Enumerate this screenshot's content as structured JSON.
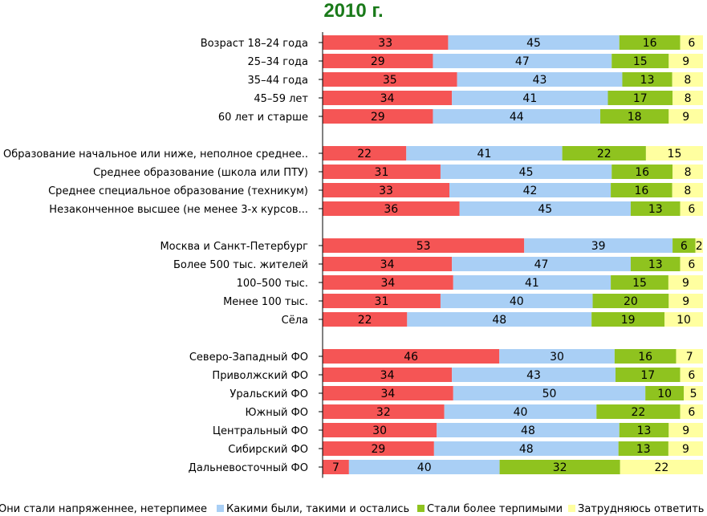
{
  "chart_data": {
    "type": "bar",
    "orientation": "horizontal",
    "stacked": true,
    "title": "2010 г.",
    "colors": [
      "#f55555",
      "#a9cff5",
      "#8fc31f",
      "#ffffa0"
    ],
    "series": [
      {
        "name": "Они стали напряженнее, нетерпимее"
      },
      {
        "name": "Какими были, такими и остались"
      },
      {
        "name": "Стали более терпимыми"
      },
      {
        "name": "Затрудняюсь ответить"
      }
    ],
    "groups": [
      [
        {
          "label": "Возраст 18–24 года",
          "values": [
            33,
            45,
            16,
            6
          ]
        },
        {
          "label": "25–34 года",
          "values": [
            29,
            47,
            15,
            9
          ]
        },
        {
          "label": "35–44 года",
          "values": [
            35,
            43,
            13,
            8
          ]
        },
        {
          "label": "45–59 лет",
          "values": [
            34,
            41,
            17,
            8
          ]
        },
        {
          "label": "60 лет и старше",
          "values": [
            29,
            44,
            18,
            9
          ]
        }
      ],
      [
        {
          "label": "Образование начальное или ниже, неполное среднее..",
          "values": [
            22,
            41,
            22,
            15
          ]
        },
        {
          "label": "Среднее образование (школа или ПТУ)",
          "values": [
            31,
            45,
            16,
            8
          ]
        },
        {
          "label": "Среднее специальное образование (техникум)",
          "values": [
            33,
            42,
            16,
            8
          ]
        },
        {
          "label": "Незаконченное высшее (не менее 3-х курсов...",
          "values": [
            36,
            45,
            13,
            6
          ]
        }
      ],
      [
        {
          "label": "Москва и Санкт-Петербург",
          "values": [
            53,
            39,
            6,
            2
          ]
        },
        {
          "label": "Более 500 тыс. жителей",
          "values": [
            34,
            47,
            13,
            6
          ]
        },
        {
          "label": "100–500 тыс.",
          "values": [
            34,
            41,
            15,
            9
          ]
        },
        {
          "label": "Менее 100 тыс.",
          "values": [
            31,
            40,
            20,
            9
          ]
        },
        {
          "label": "Сёла",
          "values": [
            22,
            48,
            19,
            10
          ]
        }
      ],
      [
        {
          "label": "Северо-Западный ФО",
          "values": [
            46,
            30,
            16,
            7
          ]
        },
        {
          "label": "Приволжский ФО",
          "values": [
            34,
            43,
            17,
            6
          ]
        },
        {
          "label": "Уральский ФО",
          "values": [
            34,
            50,
            10,
            5
          ]
        },
        {
          "label": "Южный ФО",
          "values": [
            32,
            40,
            22,
            6
          ]
        },
        {
          "label": "Центральный ФО",
          "values": [
            30,
            48,
            13,
            9
          ]
        },
        {
          "label": "Сибирский ФО",
          "values": [
            29,
            48,
            13,
            9
          ]
        },
        {
          "label": "Дальневосточный ФО",
          "values": [
            7,
            40,
            32,
            22
          ]
        }
      ]
    ]
  }
}
